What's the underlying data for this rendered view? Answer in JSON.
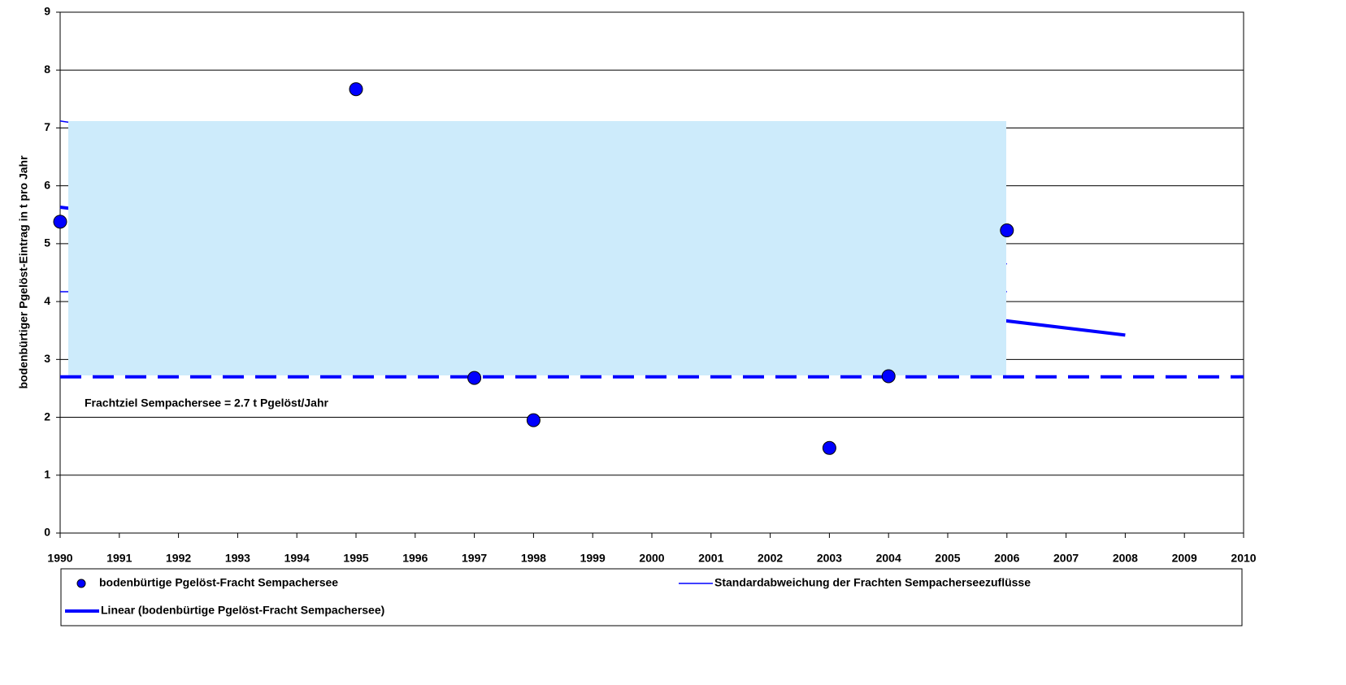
{
  "chart_data": {
    "type": "scatter",
    "y_label": "bodenbürtiger Pgelöst-Eintrag in t pro Jahr",
    "xlim": [
      1990,
      2010
    ],
    "xticks": [
      1990,
      1991,
      1992,
      1993,
      1994,
      1995,
      1996,
      1997,
      1998,
      1999,
      2000,
      2001,
      2002,
      2003,
      2004,
      2005,
      2006,
      2007,
      2008,
      2009,
      2010
    ],
    "ylim": [
      0,
      9
    ],
    "yticks": [
      0,
      1,
      2,
      3,
      4,
      5,
      6,
      7,
      8,
      9
    ],
    "grid": true,
    "series": [
      {
        "name": "bodenbürtige Pgelöst-Fracht Sempachersee",
        "kind": "points",
        "color": "#0000ff",
        "x": [
          1990,
          1995,
          1997,
          1998,
          2003,
          2004,
          2006
        ],
        "values": [
          5.38,
          7.67,
          2.68,
          1.95,
          1.47,
          2.71,
          5.23
        ]
      },
      {
        "name": "Standardabweichung der Frachten Sempacherseezuflüsse",
        "kind": "thin",
        "color": "#0000ff",
        "x": [
          1990,
          2006,
          null,
          1990,
          2006
        ],
        "values": [
          7.12,
          4.65,
          null,
          4.17,
          4.17
        ]
      },
      {
        "name": "Linear (bodenbürtige Pgelöst-Fracht Sempachersee)",
        "kind": "thick",
        "color": "#0000ff",
        "x": [
          1990,
          2008
        ],
        "values": [
          5.63,
          3.42
        ]
      }
    ],
    "target": {
      "value": 2.7,
      "label": "Frachtziel Sempachersee = 2.7 t Pgelöst/Jahr",
      "color": "#0000ff"
    }
  }
}
